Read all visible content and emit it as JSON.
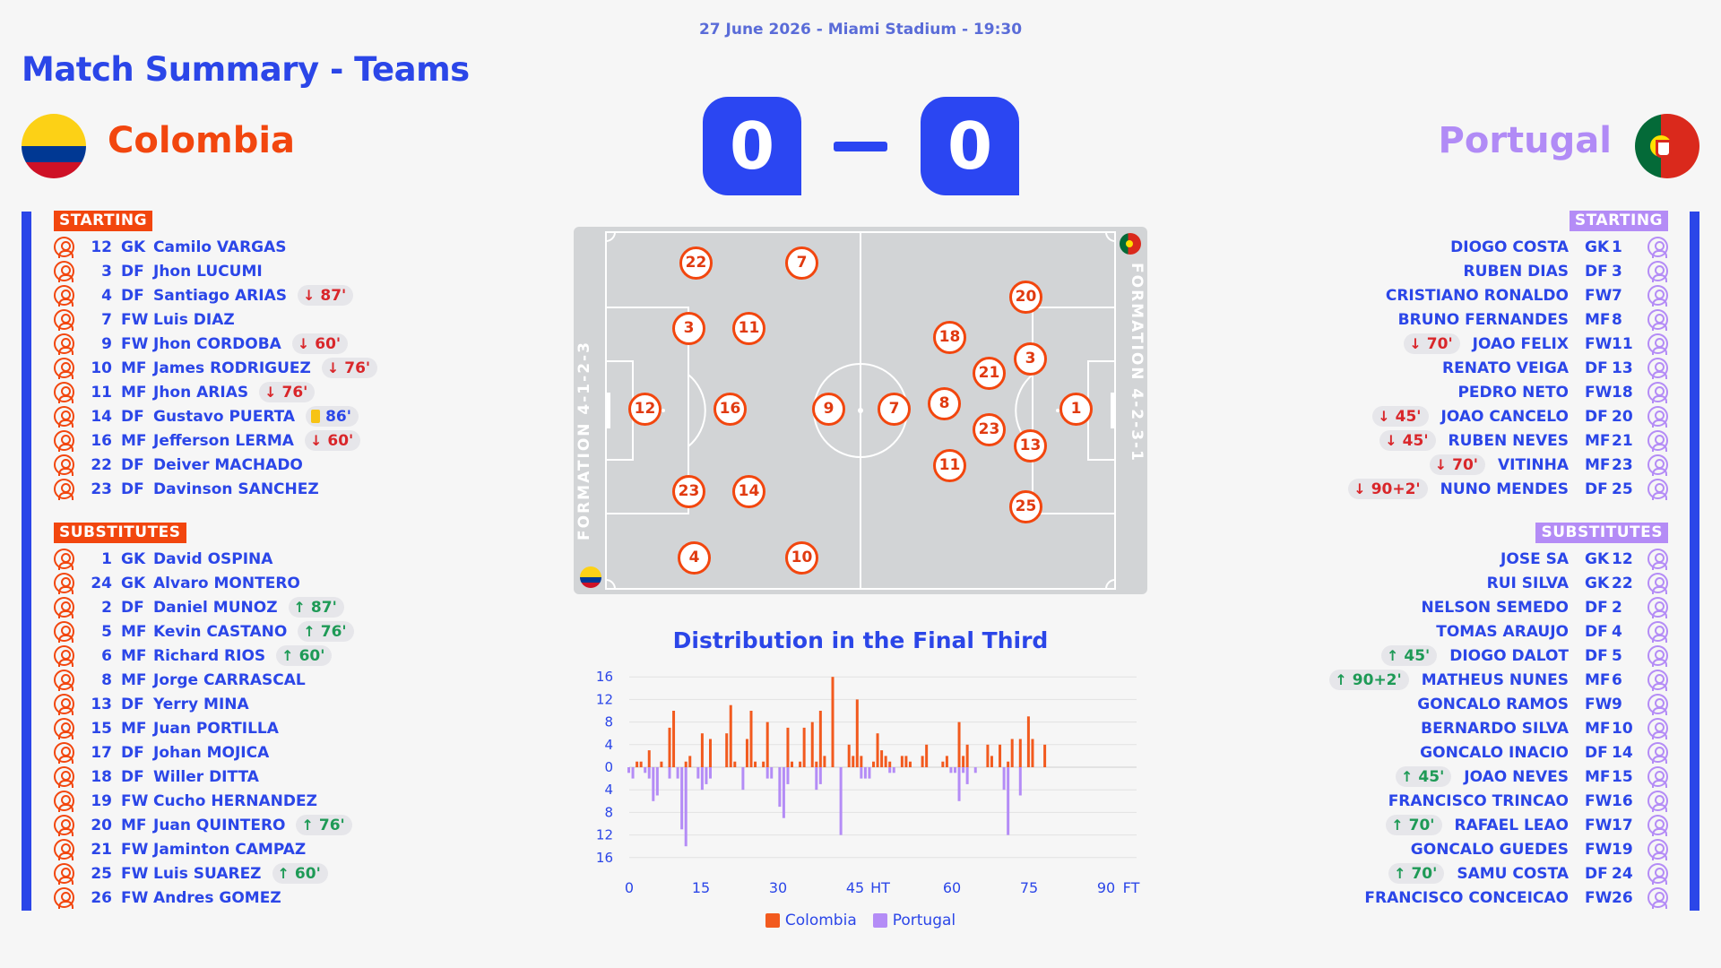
{
  "meta": "27 June 2026 - Miami Stadium - 19:30",
  "title": "Match Summary - Teams",
  "home": {
    "name": "Colombia",
    "score": "0",
    "color": "#f2460e",
    "formation": "FORMATION 4-1-2-3",
    "starting_label": "STARTING",
    "subs_label": "SUBSTITUTES",
    "starting": [
      {
        "num": "12",
        "pos": "GK",
        "name": "Camilo VARGAS"
      },
      {
        "num": "3",
        "pos": "DF",
        "name": "Jhon LUCUMI"
      },
      {
        "num": "4",
        "pos": "DF",
        "name": "Santiago ARIAS",
        "event": {
          "type": "out",
          "text": "87'"
        }
      },
      {
        "num": "7",
        "pos": "FW",
        "name": "Luis DIAZ"
      },
      {
        "num": "9",
        "pos": "FW",
        "name": "Jhon CORDOBA",
        "event": {
          "type": "out",
          "text": "60'"
        }
      },
      {
        "num": "10",
        "pos": "MF",
        "name": "James RODRIGUEZ",
        "event": {
          "type": "out",
          "text": "76'"
        }
      },
      {
        "num": "11",
        "pos": "MF",
        "name": "Jhon ARIAS",
        "event": {
          "type": "out",
          "text": "76'"
        }
      },
      {
        "num": "14",
        "pos": "DF",
        "name": "Gustavo PUERTA",
        "event": {
          "type": "card",
          "text": "86'"
        }
      },
      {
        "num": "16",
        "pos": "MF",
        "name": "Jefferson LERMA",
        "event": {
          "type": "out",
          "text": "60'"
        }
      },
      {
        "num": "22",
        "pos": "DF",
        "name": "Deiver MACHADO"
      },
      {
        "num": "23",
        "pos": "DF",
        "name": "Davinson SANCHEZ"
      }
    ],
    "subs": [
      {
        "num": "1",
        "pos": "GK",
        "name": "David OSPINA"
      },
      {
        "num": "24",
        "pos": "GK",
        "name": "Alvaro MONTERO"
      },
      {
        "num": "2",
        "pos": "DF",
        "name": "Daniel MUNOZ",
        "event": {
          "type": "in",
          "text": "87'"
        }
      },
      {
        "num": "5",
        "pos": "MF",
        "name": "Kevin CASTANO",
        "event": {
          "type": "in",
          "text": "76'"
        }
      },
      {
        "num": "6",
        "pos": "MF",
        "name": "Richard RIOS",
        "event": {
          "type": "in",
          "text": "60'"
        }
      },
      {
        "num": "8",
        "pos": "MF",
        "name": "Jorge CARRASCAL"
      },
      {
        "num": "13",
        "pos": "DF",
        "name": "Yerry MINA"
      },
      {
        "num": "15",
        "pos": "MF",
        "name": "Juan PORTILLA"
      },
      {
        "num": "17",
        "pos": "DF",
        "name": "Johan MOJICA"
      },
      {
        "num": "18",
        "pos": "DF",
        "name": "Willer DITTA"
      },
      {
        "num": "19",
        "pos": "FW",
        "name": "Cucho HERNANDEZ"
      },
      {
        "num": "20",
        "pos": "MF",
        "name": "Juan QUINTERO",
        "event": {
          "type": "in",
          "text": "76'"
        }
      },
      {
        "num": "21",
        "pos": "FW",
        "name": "Jaminton CAMPAZ"
      },
      {
        "num": "25",
        "pos": "FW",
        "name": "Luis SUAREZ",
        "event": {
          "type": "in",
          "text": "60'"
        }
      },
      {
        "num": "26",
        "pos": "FW",
        "name": "Andres GOMEZ"
      }
    ]
  },
  "away": {
    "name": "Portugal",
    "score": "0",
    "color": "#b48cf6",
    "formation": "FORMATION 4-2-3-1",
    "starting_label": "STARTING",
    "subs_label": "SUBSTITUTES",
    "starting": [
      {
        "num": "1",
        "pos": "GK",
        "name": "DIOGO COSTA"
      },
      {
        "num": "3",
        "pos": "DF",
        "name": "RUBEN DIAS"
      },
      {
        "num": "7",
        "pos": "FW",
        "name": "CRISTIANO RONALDO"
      },
      {
        "num": "8",
        "pos": "MF",
        "name": "BRUNO FERNANDES"
      },
      {
        "num": "11",
        "pos": "FW",
        "name": "JOAO FELIX",
        "event": {
          "type": "out",
          "text": "70'"
        }
      },
      {
        "num": "13",
        "pos": "DF",
        "name": "RENATO VEIGA"
      },
      {
        "num": "18",
        "pos": "FW",
        "name": "PEDRO NETO"
      },
      {
        "num": "20",
        "pos": "DF",
        "name": "JOAO CANCELO",
        "event": {
          "type": "out",
          "text": "45'"
        }
      },
      {
        "num": "21",
        "pos": "MF",
        "name": "RUBEN NEVES",
        "event": {
          "type": "out",
          "text": "45'"
        }
      },
      {
        "num": "23",
        "pos": "MF",
        "name": "VITINHA",
        "event": {
          "type": "out",
          "text": "70'"
        }
      },
      {
        "num": "25",
        "pos": "DF",
        "name": "NUNO MENDES",
        "event": {
          "type": "out",
          "text": "90+2'"
        }
      }
    ],
    "subs": [
      {
        "num": "12",
        "pos": "GK",
        "name": "JOSE SA"
      },
      {
        "num": "22",
        "pos": "GK",
        "name": "RUI SILVA"
      },
      {
        "num": "2",
        "pos": "DF",
        "name": "NELSON SEMEDO"
      },
      {
        "num": "4",
        "pos": "DF",
        "name": "TOMAS ARAUJO"
      },
      {
        "num": "5",
        "pos": "DF",
        "name": "DIOGO DALOT",
        "event": {
          "type": "in",
          "text": "45'"
        }
      },
      {
        "num": "6",
        "pos": "MF",
        "name": "MATHEUS NUNES",
        "event": {
          "type": "in",
          "text": "90+2'"
        }
      },
      {
        "num": "9",
        "pos": "FW",
        "name": "GONCALO RAMOS"
      },
      {
        "num": "10",
        "pos": "MF",
        "name": "BERNARDO SILVA"
      },
      {
        "num": "14",
        "pos": "DF",
        "name": "GONCALO INACIO"
      },
      {
        "num": "15",
        "pos": "MF",
        "name": "JOAO NEVES",
        "event": {
          "type": "in",
          "text": "45'"
        }
      },
      {
        "num": "16",
        "pos": "FW",
        "name": "FRANCISCO TRINCAO"
      },
      {
        "num": "17",
        "pos": "FW",
        "name": "RAFAEL LEAO",
        "event": {
          "type": "in",
          "text": "70'"
        }
      },
      {
        "num": "19",
        "pos": "FW",
        "name": "GONCALO GUEDES"
      },
      {
        "num": "24",
        "pos": "DF",
        "name": "SAMU COSTA",
        "event": {
          "type": "in",
          "text": "70'"
        }
      },
      {
        "num": "26",
        "pos": "FW",
        "name": "FRANCISCO CONCEICAO"
      }
    ]
  },
  "lineup_markers": {
    "home": [
      "22",
      "7",
      "3",
      "11",
      "12",
      "16",
      "9",
      "23",
      "14",
      "4",
      "10"
    ],
    "away": [
      "7",
      "20",
      "18",
      "3",
      "21",
      "8",
      "1",
      "23",
      "13",
      "11",
      "25"
    ]
  },
  "chart_data": {
    "type": "bar",
    "title": "Distribution in the Final Third",
    "x_ticks": [
      "0",
      "15",
      "30",
      "45",
      "HT",
      "60",
      "75",
      "90",
      "FT"
    ],
    "y_ticks": [
      "16",
      "12",
      "8",
      "4",
      "0",
      "4",
      "8",
      "12",
      "16"
    ],
    "ylim": [
      -16,
      16
    ],
    "legend": [
      "Colombia",
      "Portugal"
    ],
    "colors": {
      "Colombia": "#f25a1e",
      "Portugal": "#b48cf6"
    },
    "series": [
      {
        "name": "Colombia",
        "values": [
          0,
          0,
          1,
          1,
          0,
          3,
          0,
          0,
          1,
          0,
          7,
          10,
          0,
          0,
          1,
          2,
          0,
          0,
          6,
          0,
          5,
          0,
          0,
          0,
          6,
          11,
          1,
          0,
          0,
          5,
          10,
          1,
          0,
          1,
          8,
          0,
          0,
          0,
          0,
          7,
          1,
          0,
          1,
          7,
          0,
          8,
          1,
          10,
          2,
          0,
          16,
          0,
          0,
          0,
          4,
          2,
          12,
          2,
          0,
          0,
          1,
          6,
          3,
          2,
          1,
          0,
          0,
          2,
          2,
          1,
          0,
          0,
          2,
          4,
          0,
          0,
          0,
          1,
          2,
          0,
          0,
          8,
          2,
          4,
          0,
          0,
          0,
          0,
          4,
          2,
          0,
          4,
          0,
          1,
          5,
          0,
          5,
          0,
          9,
          5,
          0,
          0,
          4
        ]
      },
      {
        "name": "Portugal",
        "values": [
          1,
          2,
          0,
          0,
          1,
          2,
          6,
          5,
          0,
          0,
          2,
          0,
          2,
          11,
          14,
          0,
          0,
          2,
          4,
          3,
          2,
          0,
          0,
          0,
          0,
          0,
          0,
          0,
          4,
          0,
          0,
          0,
          0,
          0,
          2,
          2,
          0,
          7,
          9,
          3,
          0,
          0,
          0,
          0,
          0,
          0,
          4,
          3,
          0,
          0,
          0,
          0,
          12,
          0,
          0,
          0,
          0,
          2,
          2,
          2,
          0,
          0,
          0,
          0,
          1,
          1,
          0,
          0,
          0,
          0,
          0,
          0,
          0,
          0,
          0,
          0,
          0,
          0,
          0,
          1,
          1,
          6,
          1,
          3,
          0,
          1,
          0,
          0,
          0,
          0,
          0,
          0,
          4,
          12,
          0,
          0,
          5,
          0,
          0,
          0,
          0,
          0,
          0
        ]
      }
    ]
  }
}
